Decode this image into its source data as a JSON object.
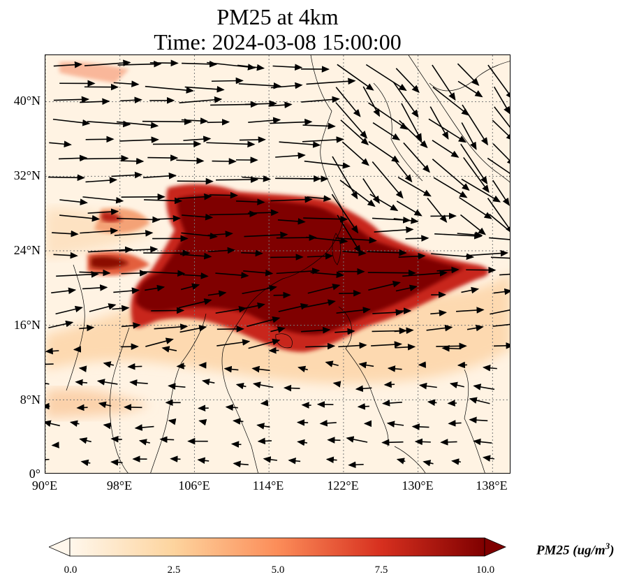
{
  "title": {
    "line1": "PM25 at 4km",
    "line2": "Time: 2024-03-08 15:00:00"
  },
  "axes": {
    "lat_ticks": [
      "0°",
      "8°N",
      "16°N",
      "24°N",
      "32°N",
      "40°N"
    ],
    "lat_values": [
      0,
      8,
      16,
      24,
      32,
      40
    ],
    "lon_ticks": [
      "90°E",
      "98°E",
      "106°E",
      "114°E",
      "122°E",
      "130°E",
      "138°E"
    ],
    "lon_values": [
      90,
      98,
      106,
      114,
      122,
      130,
      138
    ],
    "lon_range": [
      90,
      140
    ],
    "lat_range": [
      0,
      45
    ],
    "gridlines": "dotted"
  },
  "colorbar": {
    "label": "PM25 (ug/m$^3$)",
    "label_text": "PM25 (ug/m",
    "label_sup": "3",
    "label_close": ")",
    "ticks": [
      "0.0",
      "2.5",
      "5.0",
      "7.5",
      "10.0"
    ],
    "range": [
      0,
      10
    ],
    "colormap": "OrRd",
    "colors": [
      "#fff7ec",
      "#fdd49e",
      "#fc8d59",
      "#d7301f",
      "#7f0000"
    ],
    "extend": "both"
  },
  "map_data": {
    "variable": "PM25",
    "level": "4km",
    "plume_core_color": "#7f0000",
    "background_color": "#fff3e3",
    "wind_arrows": "black"
  }
}
